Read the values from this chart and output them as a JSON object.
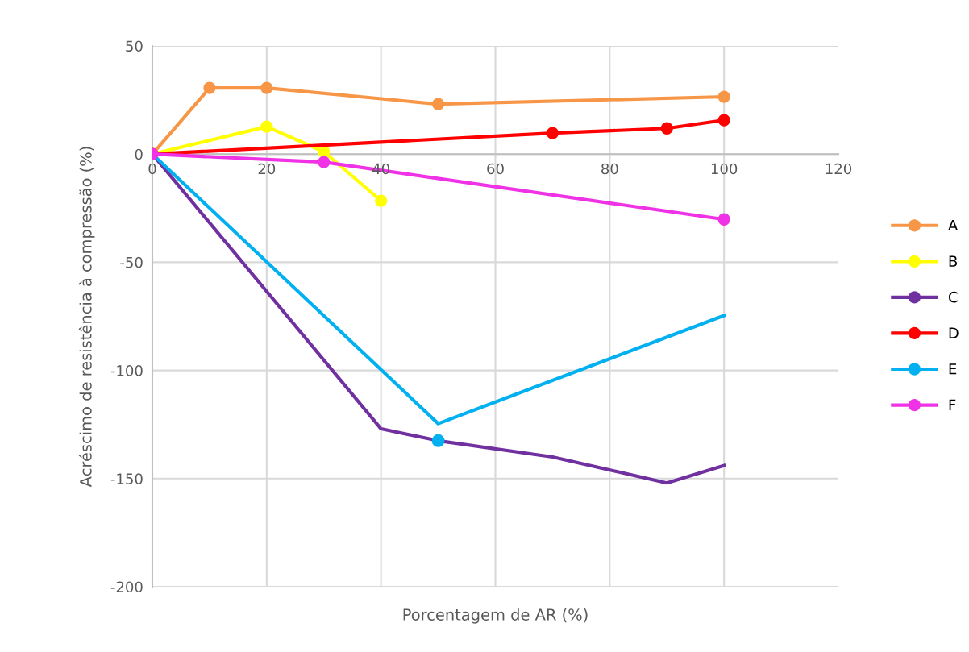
{
  "chart_data": {
    "type": "line",
    "xlabel": "Porcentagem de AR (%)",
    "ylabel": "Acréscimo de resistência à compressão (%)",
    "xlim": [
      0,
      120
    ],
    "xticks": [
      0,
      20,
      40,
      60,
      80,
      100,
      120
    ],
    "ylim": [
      -200,
      50
    ],
    "yticks": [
      -200,
      -150,
      -100,
      -50,
      0,
      50
    ],
    "grid": true,
    "legend": "right",
    "marker": "circle",
    "series": [
      {
        "name": "A",
        "color": "#f79646",
        "x": [
          0,
          10,
          20,
          50,
          100
        ],
        "values": [
          0,
          30.6,
          30.6,
          23.1,
          26.5
        ]
      },
      {
        "name": "B",
        "color": "#ffff00",
        "x": [
          0,
          20,
          30,
          40
        ],
        "values": [
          0,
          12.7,
          1.1,
          -21.6
        ]
      },
      {
        "name": "C",
        "color": "#7030a0",
        "marker": "none",
        "x": [
          0,
          40,
          50,
          70,
          90,
          100
        ],
        "values": [
          0,
          -127,
          -132.5,
          -140,
          -152,
          -144
        ]
      },
      {
        "name": "D",
        "color": "#ff0000",
        "x": [
          0,
          70,
          90,
          100
        ],
        "values": [
          0,
          9.7,
          11.9,
          15.7
        ]
      },
      {
        "name": "E",
        "color": "#00b0f0",
        "marker": "none",
        "x": [
          0,
          50,
          100
        ],
        "values": [
          0,
          -124.6,
          -74.6
        ]
      },
      {
        "type": "scatter",
        "color": "#00b0f0",
        "x": [
          50
        ],
        "values": [
          -132.5
        ]
      },
      {
        "name": "F",
        "color": "#f032e6",
        "x": [
          0,
          30,
          100
        ],
        "values": [
          0,
          -3.7,
          -30.2
        ]
      }
    ]
  }
}
